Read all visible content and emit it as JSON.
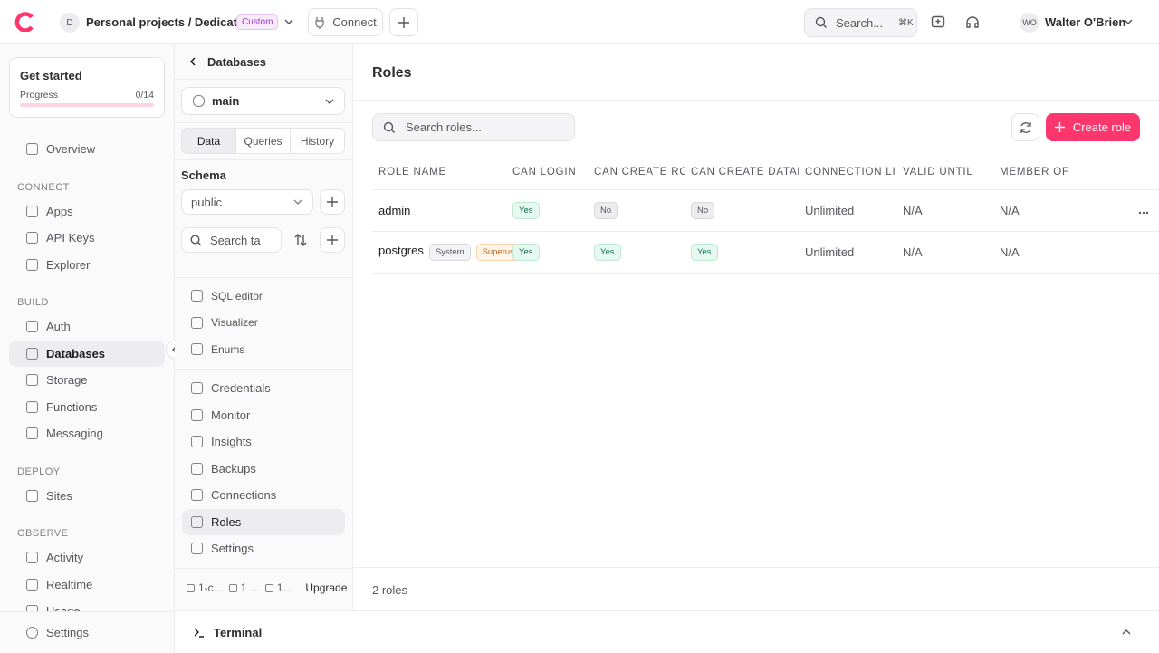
{
  "topbar": {
    "avatar": "D",
    "project": "Personal projects / Dedicated",
    "badge": "Custom",
    "connect": "Connect",
    "search": "Search...",
    "shortcut": "⌘K",
    "user_initials": "WO",
    "user_name": "Walter O'Brien"
  },
  "sidebar": {
    "get_started": "Get started",
    "progress_label": "Progress",
    "progress": "0/14",
    "groups": [
      {
        "items": [
          "Overview"
        ]
      },
      {
        "label": "CONNECT",
        "items": [
          "Apps",
          "API Keys",
          "Explorer"
        ]
      },
      {
        "label": "BUILD",
        "items": [
          "Auth",
          "Databases",
          "Storage",
          "Functions",
          "Messaging"
        ]
      },
      {
        "label": "DEPLOY",
        "items": [
          "Sites"
        ]
      },
      {
        "label": "OBSERVE",
        "items": [
          "Activity",
          "Realtime",
          "Usage"
        ]
      }
    ],
    "settings": "Settings"
  },
  "panel": {
    "back": "Databases",
    "database": "main",
    "tabs": [
      "Data",
      "Queries",
      "History"
    ],
    "schema_label": "Schema",
    "schema": "public",
    "search": "Search ta",
    "tools": [
      "SQL editor",
      "Visualizer",
      "Enums"
    ],
    "links": [
      "Credentials",
      "Monitor",
      "Insights",
      "Backups",
      "Connections",
      "Roles",
      "Settings"
    ],
    "footer": [
      "1-c…",
      "1 …",
      "1…"
    ],
    "upgrade": "Upgrade"
  },
  "main": {
    "title": "Roles",
    "search": "Search roles...",
    "create": "Create role",
    "table": {
      "headers": [
        "ROLE NAME",
        "CAN LOGIN",
        "CAN CREATE ROL",
        "CAN CREATE DATAB",
        "CONNECTION LI",
        "VALID UNTIL",
        "MEMBER OF"
      ],
      "rows": [
        {
          "name": "admin",
          "cells": [
            "Yes",
            "No",
            "No",
            "Unlimited",
            "N/A",
            "N/A"
          ]
        },
        {
          "name": "postgres",
          "tags": [
            "System",
            "Superuser"
          ],
          "cells": [
            "Yes",
            "Yes",
            "Yes",
            "Unlimited",
            "N/A",
            "N/A"
          ]
        }
      ]
    },
    "count": "2 roles"
  },
  "terminal": "Terminal"
}
